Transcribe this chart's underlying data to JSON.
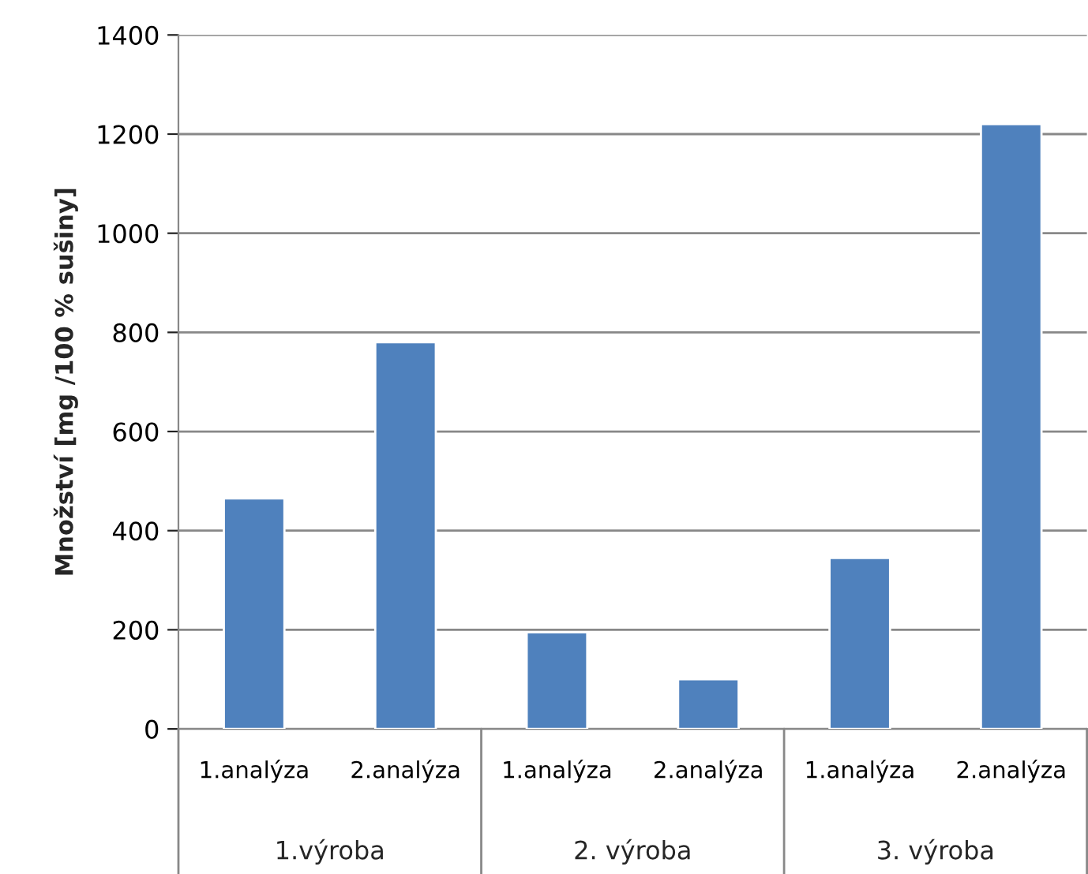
{
  "chart_data": {
    "type": "bar",
    "ylabel": "Množství [mg /100 % sušiny]",
    "categories": [
      "1.analýza",
      "2.analýza",
      "1.analýza",
      "2.analýza",
      "1.analýza",
      "2.analýza"
    ],
    "values": [
      465,
      780,
      195,
      100,
      345,
      1220
    ],
    "color": "#4f81bd",
    "annotations": [
      "1.výroba",
      "2. výroba",
      "3. výroba"
    ],
    "ylim": [
      0,
      1400
    ],
    "yticks": [
      0,
      200,
      400,
      600,
      800,
      1000,
      1200,
      1400
    ],
    "grid": "y"
  }
}
